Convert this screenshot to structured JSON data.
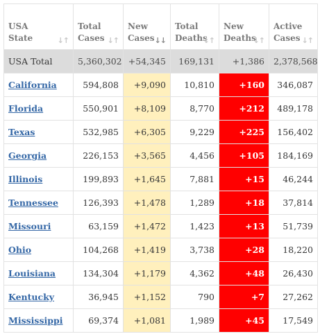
{
  "headers": [
    {
      "line1": "USA",
      "line2": "State",
      "sort": "↓↑",
      "active": false
    },
    {
      "line1": "Total",
      "line2": "Cases",
      "sort": "↓↑",
      "active": false
    },
    {
      "line1": "New",
      "line2": "Cases",
      "sort": "↓↓",
      "active": true
    },
    {
      "line1": "Total",
      "line2": "Deaths",
      "sort": "↓↑",
      "active": false
    },
    {
      "line1": "New",
      "line2": "Deaths",
      "sort": "↓↑",
      "active": false
    },
    {
      "line1": "Active",
      "line2": "Cases",
      "sort": "↓↑",
      "active": false
    }
  ],
  "total": {
    "state": "USA Total",
    "total_cases": "5,360,302",
    "new_cases": "+54,345",
    "total_deaths": "169,131",
    "new_deaths": "+1,386",
    "active_cases": "2,378,568"
  },
  "rows": [
    {
      "state": "California",
      "total_cases": "594,808",
      "new_cases": "+9,090",
      "total_deaths": "10,810",
      "new_deaths": "+160",
      "active_cases": "346,087"
    },
    {
      "state": "Florida",
      "total_cases": "550,901",
      "new_cases": "+8,109",
      "total_deaths": "8,770",
      "new_deaths": "+212",
      "active_cases": "489,178"
    },
    {
      "state": "Texas",
      "total_cases": "532,985",
      "new_cases": "+6,305",
      "total_deaths": "9,229",
      "new_deaths": "+225",
      "active_cases": "156,402"
    },
    {
      "state": "Georgia",
      "total_cases": "226,153",
      "new_cases": "+3,565",
      "total_deaths": "4,456",
      "new_deaths": "+105",
      "active_cases": "184,169"
    },
    {
      "state": "Illinois",
      "total_cases": "199,893",
      "new_cases": "+1,645",
      "total_deaths": "7,881",
      "new_deaths": "+15",
      "active_cases": "46,244"
    },
    {
      "state": "Tennessee",
      "total_cases": "126,393",
      "new_cases": "+1,478",
      "total_deaths": "1,289",
      "new_deaths": "+18",
      "active_cases": "37,814"
    },
    {
      "state": "Missouri",
      "total_cases": "63,159",
      "new_cases": "+1,472",
      "total_deaths": "1,423",
      "new_deaths": "+13",
      "active_cases": "51,739"
    },
    {
      "state": "Ohio",
      "total_cases": "104,268",
      "new_cases": "+1,419",
      "total_deaths": "3,738",
      "new_deaths": "+28",
      "active_cases": "18,220"
    },
    {
      "state": "Louisiana",
      "total_cases": "134,304",
      "new_cases": "+1,179",
      "total_deaths": "4,362",
      "new_deaths": "+48",
      "active_cases": "26,430"
    },
    {
      "state": "Kentucky",
      "total_cases": "36,945",
      "new_cases": "+1,152",
      "total_deaths": "790",
      "new_deaths": "+7",
      "active_cases": "27,262"
    },
    {
      "state": "Mississippi",
      "total_cases": "69,374",
      "new_cases": "+1,081",
      "total_deaths": "1,989",
      "new_deaths": "+45",
      "active_cases": "17,549"
    }
  ],
  "colors": {
    "new_cases_bg": "#fff0bd",
    "new_deaths_bg": "#ff0000",
    "total_row_bg": "#dcdcdc",
    "link": "#3467a6"
  }
}
